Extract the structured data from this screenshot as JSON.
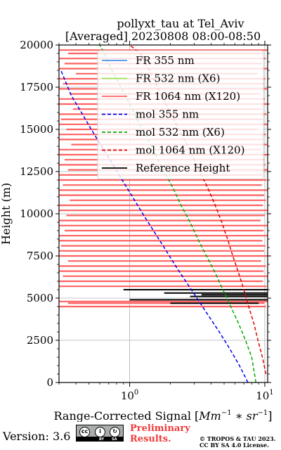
{
  "chart_data": {
    "type": "line",
    "title": "pollyxt_tau at Tel_Aviv",
    "subtitle": "[Averaged] 20230808 08:00-08:50",
    "xlabel_prefix": "Range-Corrected Signal [",
    "xlabel_math": "Mm",
    "xlabel_exp1": "−1",
    "xlabel_mid": " ∗ sr",
    "xlabel_exp2": "−1",
    "xlabel_suffix": "]",
    "ylabel": "Height (m)",
    "xscale": "log",
    "xlim": [
      0.3,
      10.5
    ],
    "ylim": [
      0,
      20000
    ],
    "x_ticks": [
      {
        "value": 1,
        "base": "10",
        "exp": "0"
      },
      {
        "value": 10,
        "base": "10",
        "exp": "1"
      }
    ],
    "y_ticks": [
      0,
      2500,
      5000,
      7500,
      10000,
      12500,
      15000,
      17500,
      20000
    ],
    "grid": true,
    "legend_position": "upper-right",
    "legend": [
      {
        "label": "FR 355 nm",
        "color": "#4a90e2",
        "dash": "solid"
      },
      {
        "label": "FR 532 nm (X6)",
        "color": "#9be65a",
        "dash": "solid"
      },
      {
        "label": "FR 1064 nm (X120)",
        "color": "#ff6262",
        "dash": "solid"
      },
      {
        "label": "mol 355 nm",
        "color": "#0000ee",
        "dash": "dashed"
      },
      {
        "label": "mol 532 nm (X6)",
        "color": "#00aa00",
        "dash": "dashed"
      },
      {
        "label": "mol 1064 nm (X120)",
        "color": "#dd0000",
        "dash": "dashed"
      },
      {
        "label": "Reference Height",
        "color": "#000000",
        "dash": "solid"
      }
    ],
    "series": [
      {
        "name": "mol 355 nm",
        "color": "#0000ee",
        "dash": "dashed",
        "points": [
          [
            7.5,
            0
          ],
          [
            6.5,
            1000
          ],
          [
            5.5,
            2000
          ],
          [
            4.6,
            3000
          ],
          [
            3.8,
            4000
          ],
          [
            3.15,
            5000
          ],
          [
            2.6,
            6000
          ],
          [
            2.15,
            7000
          ],
          [
            1.8,
            8000
          ],
          [
            1.5,
            9000
          ],
          [
            1.25,
            10000
          ],
          [
            1.05,
            11000
          ],
          [
            0.88,
            12000
          ],
          [
            0.74,
            13000
          ],
          [
            0.62,
            14000
          ],
          [
            0.52,
            15000
          ],
          [
            0.44,
            16000
          ],
          [
            0.37,
            17000
          ],
          [
            0.31,
            18500
          ]
        ]
      },
      {
        "name": "mol 532 nm (X6)",
        "color": "#00aa00",
        "dash": "dashed",
        "points": [
          [
            8.6,
            0
          ],
          [
            8.0,
            1500
          ],
          [
            7.2,
            2500
          ],
          [
            6.4,
            3500
          ],
          [
            5.6,
            4500
          ],
          [
            4.9,
            5500
          ],
          [
            4.3,
            6500
          ],
          [
            3.7,
            7500
          ],
          [
            3.2,
            8500
          ],
          [
            2.8,
            9500
          ],
          [
            2.4,
            10500
          ],
          [
            2.1,
            11500
          ],
          [
            1.8,
            12500
          ],
          [
            1.55,
            13500
          ],
          [
            1.35,
            14500
          ],
          [
            1.15,
            15500
          ],
          [
            1.0,
            16500
          ],
          [
            0.86,
            17500
          ],
          [
            0.74,
            18500
          ],
          [
            0.65,
            19500
          ],
          [
            0.6,
            20000
          ]
        ]
      },
      {
        "name": "mol 1064 nm (X120)",
        "color": "#dd0000",
        "dash": "dashed",
        "points": [
          [
            10.2,
            500
          ],
          [
            9.6,
            1500
          ],
          [
            8.9,
            2500
          ],
          [
            8.3,
            3500
          ],
          [
            7.6,
            4500
          ],
          [
            7.0,
            5500
          ],
          [
            6.4,
            6500
          ],
          [
            5.8,
            7500
          ],
          [
            5.3,
            8500
          ],
          [
            4.8,
            9500
          ],
          [
            4.3,
            10500
          ],
          [
            3.8,
            11500
          ],
          [
            3.3,
            12500
          ],
          [
            2.9,
            13500
          ],
          [
            2.5,
            14500
          ],
          [
            2.15,
            15500
          ],
          [
            1.85,
            16500
          ],
          [
            1.6,
            17500
          ],
          [
            1.4,
            18500
          ],
          [
            1.2,
            19500
          ],
          [
            1.0,
            20000
          ]
        ]
      }
    ],
    "fr1064_bands": [
      [
        19700,
        0.3,
        10.5
      ],
      [
        19500,
        0.35,
        9.8
      ],
      [
        19200,
        0.3,
        10.2
      ],
      [
        18900,
        0.33,
        9.5
      ],
      [
        18600,
        0.3,
        10.5
      ],
      [
        18300,
        0.4,
        8.9
      ],
      [
        18000,
        0.3,
        10.1
      ],
      [
        17700,
        0.32,
        9.9
      ],
      [
        17400,
        0.3,
        10.4
      ],
      [
        17100,
        0.36,
        9.2
      ],
      [
        16800,
        0.3,
        10.0
      ],
      [
        16500,
        0.3,
        10.5
      ],
      [
        16200,
        0.38,
        9.6
      ],
      [
        15900,
        0.3,
        10.3
      ],
      [
        15600,
        0.31,
        9.7
      ],
      [
        15300,
        0.3,
        10.5
      ],
      [
        15000,
        0.34,
        9.0
      ],
      [
        14700,
        0.3,
        10.2
      ],
      [
        14400,
        0.3,
        9.8
      ],
      [
        14100,
        0.37,
        10.4
      ],
      [
        13800,
        0.3,
        9.4
      ],
      [
        13500,
        0.3,
        10.5
      ],
      [
        13200,
        0.33,
        9.9
      ],
      [
        12900,
        0.3,
        10.1
      ],
      [
        12600,
        0.35,
        10.5
      ],
      [
        12300,
        0.3,
        9.6
      ],
      [
        12000,
        0.3,
        10.3
      ],
      [
        11700,
        0.32,
        9.5
      ],
      [
        11400,
        0.3,
        10.5
      ],
      [
        11100,
        0.3,
        9.9
      ],
      [
        10800,
        0.36,
        10.2
      ],
      [
        10500,
        0.3,
        9.7
      ],
      [
        10200,
        0.3,
        10.5
      ],
      [
        9900,
        0.34,
        10.0
      ],
      [
        9600,
        0.3,
        9.3
      ],
      [
        9300,
        0.3,
        10.4
      ],
      [
        9000,
        0.33,
        9.8
      ],
      [
        8700,
        0.3,
        10.5
      ],
      [
        8400,
        0.3,
        9.6
      ],
      [
        8100,
        0.31,
        10.1
      ],
      [
        7800,
        0.3,
        9.9
      ],
      [
        7500,
        0.3,
        10.5
      ],
      [
        7200,
        0.35,
        9.4
      ],
      [
        6900,
        0.3,
        10.2
      ],
      [
        6600,
        0.3,
        9.8
      ],
      [
        6300,
        0.32,
        10.5
      ],
      [
        6000,
        0.3,
        9.7
      ],
      [
        5700,
        0.3,
        10.3
      ],
      [
        4800,
        0.3,
        10.5
      ],
      [
        4700,
        0.35,
        9.9
      ],
      [
        4500,
        0.3,
        10.2
      ]
    ],
    "reference_height_marks": [
      [
        5500,
        0.9,
        10.5
      ],
      [
        5300,
        1.8,
        10.5
      ],
      [
        5100,
        2.8,
        10.5
      ],
      [
        4900,
        1.0,
        10.5
      ],
      [
        4700,
        2.0,
        9.0
      ],
      [
        5200,
        3.4,
        10.5
      ]
    ],
    "footer": {
      "version": "Version: 3.6",
      "cc_labels": [
        "cc",
        "BY",
        "SA"
      ],
      "preliminary": "Preliminary",
      "results": "Results.",
      "copyright_1": "© TROPOS & TAU 2023.",
      "copyright_2": "CC BY SA 4.0 License."
    }
  }
}
